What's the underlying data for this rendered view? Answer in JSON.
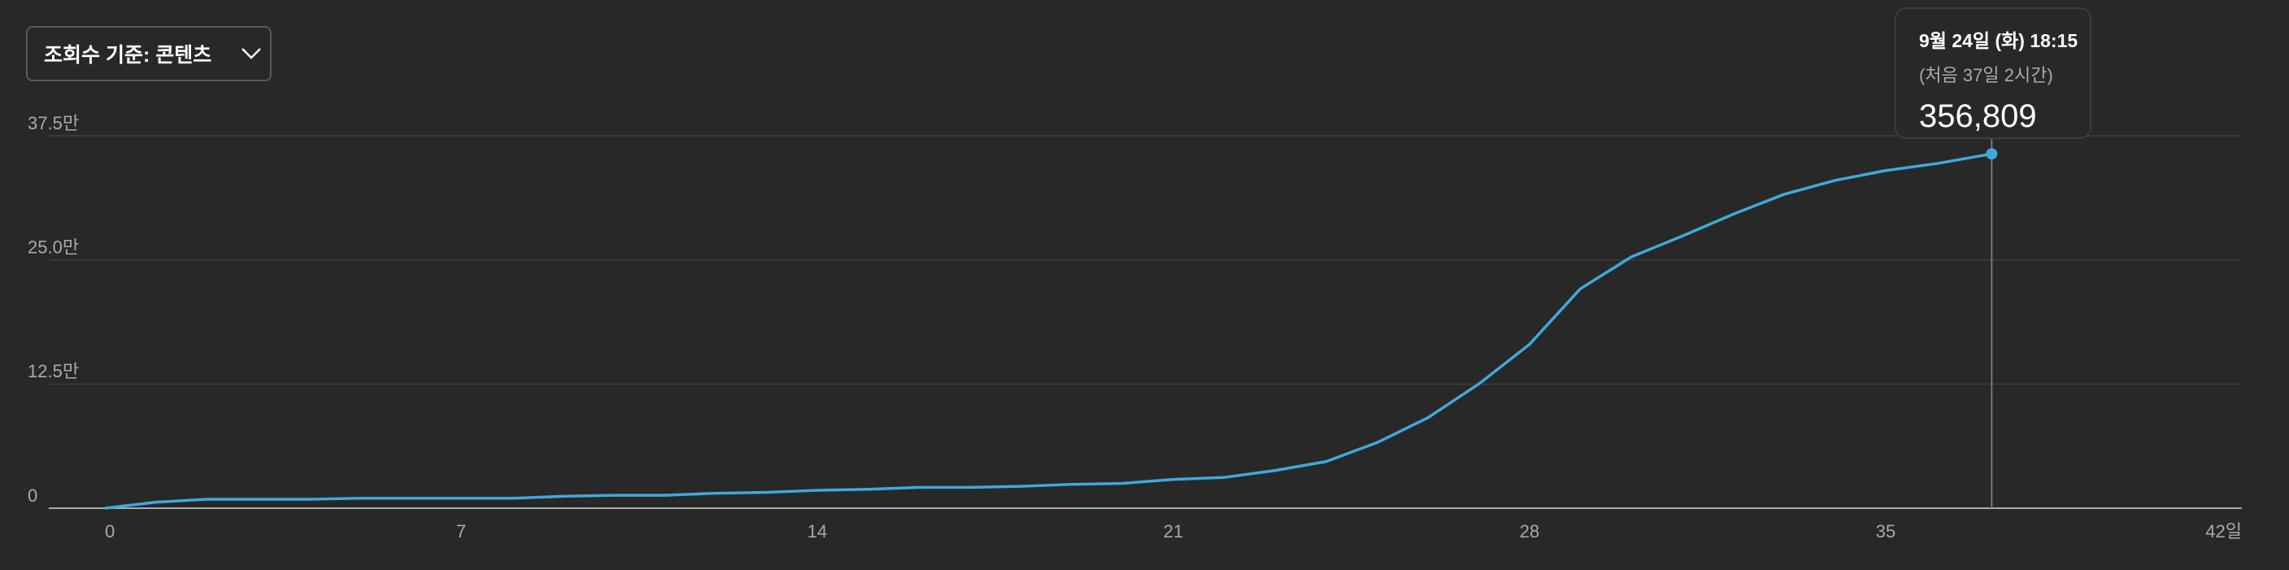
{
  "dropdown": {
    "label": "조회수 기준: 콘텐츠"
  },
  "chart_data": {
    "type": "line",
    "x": [
      0,
      1,
      2,
      3,
      4,
      5,
      6,
      7,
      8,
      9,
      10,
      11,
      12,
      13,
      14,
      15,
      16,
      17,
      18,
      19,
      20,
      21,
      22,
      23,
      24,
      25,
      26,
      27,
      28,
      29,
      30,
      31,
      32,
      33,
      34,
      35,
      36,
      37.0833
    ],
    "series": [
      {
        "color": "#3fa9dc",
        "values": [
          0,
          0.6,
          0.9,
          0.9,
          0.9,
          1.0,
          1.0,
          1.0,
          1.0,
          1.2,
          1.3,
          1.3,
          1.5,
          1.6,
          1.8,
          1.9,
          2.1,
          2.1,
          2.2,
          2.4,
          2.5,
          2.9,
          3.1,
          3.8,
          4.7,
          6.6,
          9.1,
          12.5,
          16.5,
          22.1,
          25.3,
          27.4,
          29.6,
          31.6,
          33.0,
          34.0,
          34.7,
          35.6809
        ],
        "value_labels": [
          null,
          null,
          null,
          null,
          null,
          null,
          null,
          null,
          null,
          null,
          null,
          null,
          null,
          null,
          null,
          null,
          null,
          null,
          null,
          null,
          null,
          null,
          null,
          null,
          null,
          null,
          null,
          null,
          null,
          null,
          null,
          null,
          null,
          null,
          null,
          null,
          null,
          "356,809"
        ]
      }
    ],
    "xlim": [
      0,
      42
    ],
    "xticks": [
      0,
      7,
      14,
      21,
      28,
      35,
      {
        "value": 42,
        "label": "42일"
      }
    ],
    "ylim": [
      0,
      37.5
    ],
    "yticks": [
      0,
      {
        "value": 12.5,
        "label": "12.5만"
      },
      {
        "value": 25,
        "label": "25.0만"
      },
      {
        "value": 37.5,
        "label": "37.5만"
      }
    ],
    "grid": true,
    "tooltip": {
      "date": "9월 24일 (화) 18:15",
      "elapsed": "(처음 37일 2시간)"
    }
  }
}
